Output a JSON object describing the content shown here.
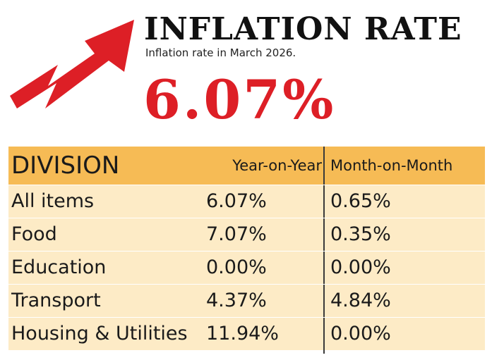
{
  "colors": {
    "accent_red": "#dd1f26",
    "header_fill": "#f6bb55",
    "row_fill": "#fdebc6",
    "text": "#1a1a1a"
  },
  "logo": {
    "icon": "red-zigzag-up-arrow-icon"
  },
  "title": "INFLATION RATE",
  "subtitle": "Inflation rate in March 2026.",
  "headline_value": "6.07%",
  "chart_data": {
    "type": "table",
    "columns": [
      "DIVISION",
      "Year-on-Year",
      "Month-on-Month"
    ],
    "rows": [
      {
        "division": "All items",
        "yoy": "6.07%",
        "mom": "0.65%"
      },
      {
        "division": "Food",
        "yoy": "7.07%",
        "mom": "0.35%"
      },
      {
        "division": "Education",
        "yoy": "0.00%",
        "mom": "0.00%"
      },
      {
        "division": "Transport",
        "yoy": "4.37%",
        "mom": "4.84%"
      },
      {
        "division": "Housing & Utilities",
        "yoy": "11.94%",
        "mom": "0.00%"
      }
    ]
  }
}
